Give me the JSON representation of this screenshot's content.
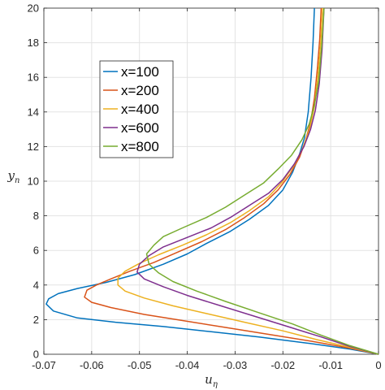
{
  "chart_data": {
    "type": "line",
    "xlabel": "u",
    "xlabel_sub": "η",
    "ylabel": "y",
    "ylabel_sub": "n",
    "xlim": [
      -0.07,
      0
    ],
    "ylim": [
      0,
      20
    ],
    "xticks": [
      -0.07,
      -0.06,
      -0.05,
      -0.04,
      -0.03,
      -0.02,
      -0.01,
      0
    ],
    "xtick_labels": [
      "-0.07",
      "-0.06",
      "-0.05",
      "-0.04",
      "-0.03",
      "-0.02",
      "-0.01",
      "0"
    ],
    "yticks": [
      0,
      2,
      4,
      6,
      8,
      10,
      12,
      14,
      16,
      18,
      20
    ],
    "ytick_labels": [
      "0",
      "2",
      "4",
      "6",
      "8",
      "10",
      "12",
      "14",
      "16",
      "18",
      "20"
    ],
    "grid": true,
    "legend_position": "upper-left",
    "series": [
      {
        "name": "x=100",
        "color": "#0072BD",
        "x": [
          0,
          -0.006,
          -0.015,
          -0.025,
          -0.035,
          -0.045,
          -0.055,
          -0.063,
          -0.068,
          -0.0695,
          -0.069,
          -0.067,
          -0.063,
          -0.057,
          -0.051,
          -0.045,
          -0.04,
          -0.036,
          -0.031,
          -0.027,
          -0.023,
          -0.02,
          -0.018,
          -0.0166,
          -0.0155,
          -0.0147,
          -0.0141,
          -0.0137,
          -0.0134
        ],
        "y": [
          0,
          0.3,
          0.65,
          1.0,
          1.3,
          1.6,
          1.85,
          2.1,
          2.5,
          2.9,
          3.2,
          3.5,
          3.8,
          4.15,
          4.6,
          5.2,
          5.8,
          6.4,
          7.1,
          7.8,
          8.6,
          9.5,
          10.5,
          11.5,
          12.5,
          14,
          16,
          18,
          20
        ]
      },
      {
        "name": "x=200",
        "color": "#D95319",
        "x": [
          0,
          -0.006,
          -0.014,
          -0.023,
          -0.032,
          -0.041,
          -0.049,
          -0.056,
          -0.06,
          -0.0615,
          -0.061,
          -0.059,
          -0.056,
          -0.052,
          -0.047,
          -0.042,
          -0.037,
          -0.032,
          -0.028,
          -0.024,
          -0.021,
          -0.0185,
          -0.0165,
          -0.0152,
          -0.0142,
          -0.0134,
          -0.0128,
          -0.0123,
          -0.012
        ],
        "y": [
          0,
          0.35,
          0.75,
          1.15,
          1.55,
          1.95,
          2.3,
          2.7,
          3.0,
          3.3,
          3.7,
          4.0,
          4.35,
          4.8,
          5.3,
          5.9,
          6.5,
          7.2,
          7.9,
          8.7,
          9.5,
          10.4,
          11.4,
          12.4,
          13.4,
          14.8,
          16.5,
          18.2,
          20
        ]
      },
      {
        "name": "x=400",
        "color": "#EDB120",
        "x": [
          0,
          -0.006,
          -0.013,
          -0.02,
          -0.028,
          -0.036,
          -0.043,
          -0.049,
          -0.053,
          -0.0545,
          -0.0545,
          -0.053,
          -0.05,
          -0.046,
          -0.041,
          -0.036,
          -0.031,
          -0.027,
          -0.023,
          -0.02,
          -0.0175,
          -0.0157,
          -0.0144,
          -0.0134,
          -0.0127,
          -0.0121,
          -0.0117
        ],
        "y": [
          0,
          0.4,
          0.85,
          1.35,
          1.85,
          2.35,
          2.8,
          3.25,
          3.65,
          4.0,
          4.4,
          4.8,
          5.25,
          5.75,
          6.3,
          6.9,
          7.6,
          8.3,
          9.1,
          10.0,
          11.0,
          12.0,
          13.0,
          14.3,
          16.0,
          18.0,
          20
        ]
      },
      {
        "name": "x=600",
        "color": "#7E2F8E",
        "x": [
          0,
          -0.006,
          -0.012,
          -0.019,
          -0.026,
          -0.033,
          -0.04,
          -0.045,
          -0.049,
          -0.0505,
          -0.05,
          -0.048,
          -0.045,
          -0.04,
          -0.035,
          -0.031,
          -0.027,
          -0.023,
          -0.02,
          -0.0176,
          -0.0156,
          -0.0142,
          -0.0132,
          -0.0124,
          -0.0118,
          -0.0114
        ],
        "y": [
          0,
          0.45,
          1.0,
          1.6,
          2.2,
          2.8,
          3.4,
          3.9,
          4.35,
          4.75,
          5.2,
          5.7,
          6.2,
          6.75,
          7.3,
          7.9,
          8.6,
          9.3,
          10.1,
          11.0,
          12.0,
          13.0,
          14.1,
          15.6,
          17.6,
          20
        ]
      },
      {
        "name": "x=800",
        "color": "#77AC30",
        "x": [
          0,
          -0.006,
          -0.012,
          -0.018,
          -0.025,
          -0.032,
          -0.038,
          -0.043,
          -0.046,
          -0.048,
          -0.0485,
          -0.047,
          -0.045,
          -0.041,
          -0.036,
          -0.032,
          -0.028,
          -0.024,
          -0.021,
          -0.0182,
          -0.016,
          -0.0145,
          -0.0134,
          -0.0125,
          -0.0119,
          -0.0114
        ],
        "y": [
          0,
          0.5,
          1.1,
          1.75,
          2.4,
          3.05,
          3.65,
          4.2,
          4.7,
          5.2,
          5.8,
          6.3,
          6.8,
          7.3,
          7.9,
          8.5,
          9.2,
          9.9,
          10.7,
          11.5,
          12.4,
          13.3,
          14.4,
          15.8,
          17.8,
          20
        ]
      }
    ]
  }
}
